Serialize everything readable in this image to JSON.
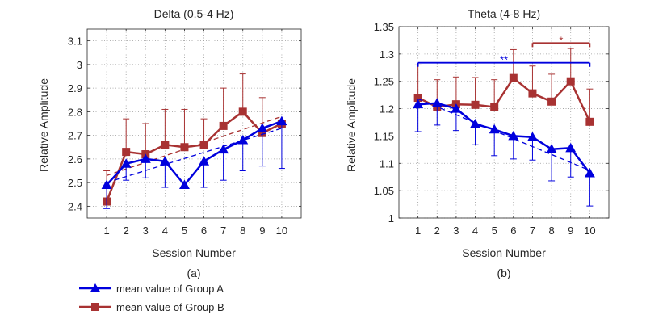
{
  "colors": {
    "group_a": "#0000dd",
    "group_b": "#a83232",
    "grid": "#9a9a9a",
    "axis": "#262626"
  },
  "legend": {
    "placement": "bottom-left, below panels",
    "items": [
      {
        "label": "mean value of Group A",
        "series": "A",
        "marker": "triangle"
      },
      {
        "label": "mean value of Group B",
        "series": "B",
        "marker": "square"
      }
    ]
  },
  "chart_data": [
    {
      "type": "line",
      "panel_label": "(a)",
      "title": "Delta (0.5-4 Hz)",
      "xlabel": "Session Number",
      "ylabel": "Relative Amplitude",
      "x": [
        1,
        2,
        3,
        4,
        5,
        6,
        7,
        8,
        9,
        10
      ],
      "xlim": [
        0,
        11
      ],
      "ylim": [
        2.35,
        3.15
      ],
      "yticks": [
        2.4,
        2.5,
        2.6,
        2.7,
        2.8,
        2.9,
        3,
        3.1
      ],
      "ytick_labels": [
        "2.4",
        "2.5",
        "2.6",
        "2.7",
        "2.8",
        "2.9",
        "3",
        "3.1"
      ],
      "grid": true,
      "series": [
        {
          "name": "mean value of Group A",
          "key": "A",
          "values": [
            2.49,
            2.58,
            2.6,
            2.59,
            2.49,
            2.59,
            2.64,
            2.68,
            2.73,
            2.76
          ],
          "err": [
            0.1,
            0.07,
            0.08,
            0.11,
            0.0,
            0.11,
            0.13,
            0.13,
            0.16,
            0.2
          ],
          "trend": [
            2.5,
            2.73
          ]
        },
        {
          "name": "mean value of Group B",
          "key": "B",
          "values": [
            2.42,
            2.63,
            2.62,
            2.66,
            2.65,
            2.66,
            2.74,
            2.8,
            2.71,
            2.75
          ],
          "err": [
            0.13,
            0.14,
            0.13,
            0.15,
            0.16,
            0.11,
            0.16,
            0.16,
            0.15,
            0.0
          ],
          "trend": [
            2.53,
            2.78
          ]
        }
      ],
      "annotations": []
    },
    {
      "type": "line",
      "panel_label": "(b)",
      "title": "Theta (4-8 Hz)",
      "xlabel": "Session Number",
      "ylabel": "Relative Amplitude",
      "x": [
        1,
        2,
        3,
        4,
        5,
        6,
        7,
        8,
        9,
        10
      ],
      "xlim": [
        0,
        11
      ],
      "ylim": [
        1,
        1.35
      ],
      "yticks": [
        1,
        1.05,
        1.1,
        1.15,
        1.2,
        1.25,
        1.3,
        1.35
      ],
      "ytick_labels": [
        "1",
        "1.05",
        "1.1",
        "1.15",
        "1.2",
        "1.25",
        "1.3",
        "1.35"
      ],
      "grid": true,
      "series": [
        {
          "name": "mean value of Group A",
          "key": "A",
          "values": [
            1.208,
            1.21,
            1.2,
            1.172,
            1.162,
            1.15,
            1.148,
            1.126,
            1.128,
            1.082
          ],
          "err": [
            0.05,
            0.04,
            0.04,
            0.038,
            0.048,
            0.042,
            0.042,
            0.058,
            0.053,
            0.06
          ],
          "trend": [
            1.218,
            1.087
          ]
        },
        {
          "name": "mean value of Group B",
          "key": "B",
          "values": [
            1.22,
            1.203,
            1.208,
            1.207,
            1.203,
            1.256,
            1.228,
            1.213,
            1.25,
            1.176
          ],
          "err": [
            0.06,
            0.05,
            0.05,
            0.05,
            0.05,
            0.052,
            0.05,
            0.05,
            0.06,
            0.06
          ],
          "trend": null
        }
      ],
      "annotations": [
        {
          "text": "**",
          "x1": 1,
          "x2": 10,
          "y": 1.284,
          "series": "A"
        },
        {
          "text": "*",
          "x1": 7,
          "x2": 10,
          "y": 1.32,
          "series": "B"
        }
      ]
    }
  ]
}
